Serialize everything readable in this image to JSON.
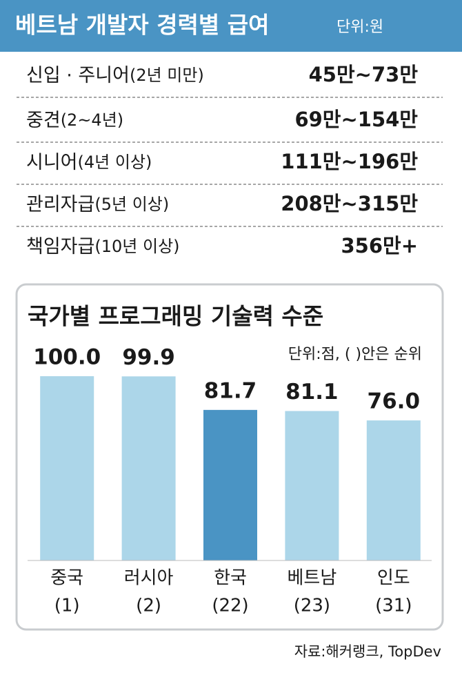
{
  "header": {
    "title": "베트남 개발자 경력별 급여",
    "unit": "단위:원"
  },
  "table": {
    "rows": [
      [
        "신입 · 주니어",
        "(2년 미만)",
        "45만~73만"
      ],
      [
        "중견",
        "(2~4년)",
        "69만~154만"
      ],
      [
        "시니어",
        "(4년 이상)",
        "111만~196만"
      ],
      [
        "관리자급",
        "(5년 이상)",
        "208만~315만"
      ],
      [
        "책임자급",
        "(10년 이상)",
        "356만+"
      ]
    ]
  },
  "chart_data": {
    "type": "bar",
    "title": "국가별 프로그래밍 기술력 수준",
    "subtitle": "단위:점, (   )안은 순위",
    "categories": [
      "중국",
      "러시아",
      "한국",
      "베트남",
      "인도"
    ],
    "ranks": [
      "(1)",
      "(2)",
      "(22)",
      "(23)",
      "(31)"
    ],
    "values": [
      100.0,
      99.9,
      81.7,
      81.1,
      76.0
    ],
    "value_labels": [
      "100.0",
      "99.9",
      "81.7",
      "81.1",
      "76.0"
    ],
    "colors": [
      "#acd6e9",
      "#acd6e9",
      "#4a94c4",
      "#acd6e9",
      "#acd6e9"
    ]
  },
  "source": "자료:해커랭크, TopDev"
}
